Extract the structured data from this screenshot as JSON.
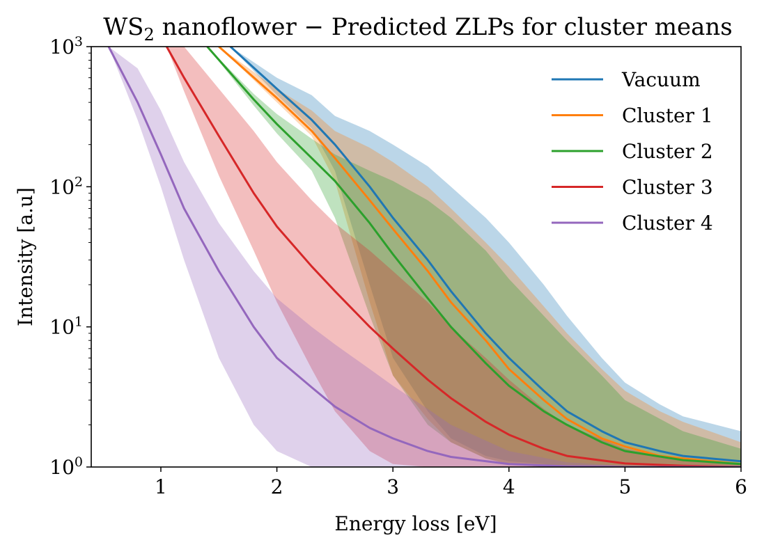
{
  "chart_data": {
    "type": "line",
    "title": "WS",
    "title_subscript": "2",
    "title_rest": " nanoflower − Predicted ZLPs for cluster means",
    "xlabel": "Energy loss [eV]",
    "ylabel": "Intensity [a.u]",
    "xlim": [
      0.4,
      6.0
    ],
    "ylim": [
      1,
      1000
    ],
    "y_scale": "log",
    "grid": false,
    "legend_position": "top-right",
    "x_ticks": [
      {
        "value": 1,
        "label": "1"
      },
      {
        "value": 2,
        "label": "2"
      },
      {
        "value": 3,
        "label": "3"
      },
      {
        "value": 4,
        "label": "4"
      },
      {
        "value": 5,
        "label": "5"
      },
      {
        "value": 6,
        "label": "6"
      }
    ],
    "y_ticks": [
      {
        "value": 1,
        "base": "10",
        "exp": "0"
      },
      {
        "value": 10,
        "base": "10",
        "exp": "1"
      },
      {
        "value": 100,
        "base": "10",
        "exp": "2"
      },
      {
        "value": 1000,
        "base": "10",
        "exp": "3"
      }
    ],
    "series": [
      {
        "name": "Vacuum",
        "color": "#1f77b4",
        "x": [
          1.6,
          2.0,
          2.3,
          2.5,
          2.8,
          3.0,
          3.3,
          3.5,
          3.8,
          4.0,
          4.3,
          4.5,
          4.8,
          5.0,
          5.3,
          5.5,
          6.0
        ],
        "y": [
          1000,
          500,
          300,
          200,
          100,
          60,
          30,
          18,
          9,
          6,
          3.5,
          2.5,
          1.8,
          1.5,
          1.3,
          1.2,
          1.1
        ],
        "band_lower": [
          1000,
          450,
          260,
          130,
          20,
          6,
          2.5,
          1.6,
          1.2,
          1.1,
          1.05,
          1.0,
          1.0,
          1.0,
          1.0,
          1.0,
          1.0
        ],
        "band_upper": [
          1000,
          600,
          450,
          320,
          250,
          200,
          140,
          100,
          60,
          40,
          20,
          12,
          6,
          4,
          2.8,
          2.3,
          1.8
        ]
      },
      {
        "name": "Cluster 1",
        "color": "#ff7f0e",
        "x": [
          1.5,
          2.0,
          2.3,
          2.5,
          2.8,
          3.0,
          3.3,
          3.5,
          3.8,
          4.0,
          4.3,
          4.5,
          4.8,
          5.0,
          5.3,
          5.5,
          6.0
        ],
        "y": [
          1000,
          430,
          250,
          160,
          80,
          50,
          25,
          15,
          8,
          5,
          3,
          2.2,
          1.6,
          1.4,
          1.2,
          1.15,
          1.05
        ],
        "band_lower": [
          1000,
          400,
          230,
          110,
          15,
          4.5,
          2.2,
          1.5,
          1.15,
          1.05,
          1.0,
          1.0,
          1.0,
          1.0,
          1.0,
          1.0,
          1.0
        ],
        "band_upper": [
          1000,
          500,
          350,
          250,
          190,
          150,
          100,
          70,
          40,
          27,
          14,
          9,
          5,
          3.5,
          2.5,
          2.1,
          1.5
        ]
      },
      {
        "name": "Cluster 2",
        "color": "#2ca02c",
        "x": [
          1.4,
          1.8,
          2.0,
          2.3,
          2.5,
          2.8,
          3.0,
          3.3,
          3.5,
          3.8,
          4.0,
          4.3,
          4.5,
          4.8,
          5.0,
          5.5,
          6.0
        ],
        "y": [
          1000,
          420,
          280,
          160,
          110,
          55,
          33,
          16,
          10,
          5.5,
          3.8,
          2.5,
          2,
          1.5,
          1.3,
          1.12,
          1.05
        ],
        "band_lower": [
          1000,
          380,
          240,
          130,
          60,
          12,
          4.5,
          2,
          1.5,
          1.15,
          1.05,
          1.0,
          1.0,
          1.0,
          1.0,
          1.0,
          1.0
        ],
        "band_upper": [
          1000,
          460,
          330,
          220,
          170,
          130,
          110,
          80,
          60,
          35,
          22,
          12,
          8,
          4.5,
          3,
          1.8,
          1.35
        ]
      },
      {
        "name": "Cluster 3",
        "color": "#d62728",
        "x": [
          1.05,
          1.2,
          1.5,
          1.8,
          2.0,
          2.3,
          2.5,
          2.8,
          3.0,
          3.3,
          3.5,
          3.8,
          4.0,
          4.3,
          4.5,
          5.0,
          5.5,
          6.0
        ],
        "y": [
          1000,
          600,
          230,
          90,
          52,
          27,
          18,
          10,
          7,
          4.2,
          3.1,
          2.1,
          1.7,
          1.35,
          1.2,
          1.06,
          1.02,
          1.0
        ],
        "band_lower": [
          1000,
          480,
          120,
          35,
          15,
          5,
          2.5,
          1.3,
          1.05,
          1.0,
          1.0,
          1.0,
          1.0,
          1.0,
          1.0,
          1.0,
          1.0,
          1.0
        ],
        "band_upper": [
          1000,
          1000,
          500,
          250,
          150,
          80,
          55,
          35,
          25,
          15,
          10,
          6,
          4.2,
          2.6,
          2,
          1.35,
          1.12,
          1.05
        ]
      },
      {
        "name": "Cluster 4",
        "color": "#9467bd",
        "x": [
          0.55,
          0.8,
          1.0,
          1.2,
          1.5,
          1.8,
          2.0,
          2.3,
          2.5,
          2.8,
          3.0,
          3.3,
          3.5,
          4.0,
          4.5,
          5.0,
          6.0
        ],
        "y": [
          1000,
          400,
          170,
          70,
          25,
          10,
          6,
          3.7,
          2.7,
          1.9,
          1.6,
          1.3,
          1.18,
          1.05,
          1.01,
          1.0,
          1.0
        ],
        "band_lower": [
          1000,
          300,
          100,
          30,
          6,
          2,
          1.3,
          1.0,
          1.0,
          1.0,
          1.0,
          1.0,
          1.0,
          1.0,
          1.0,
          1.0,
          1.0
        ],
        "band_upper": [
          1000,
          700,
          350,
          150,
          55,
          25,
          16,
          10,
          7.5,
          5,
          3.8,
          2.6,
          2,
          1.3,
          1.08,
          1.02,
          1.0
        ]
      }
    ]
  }
}
